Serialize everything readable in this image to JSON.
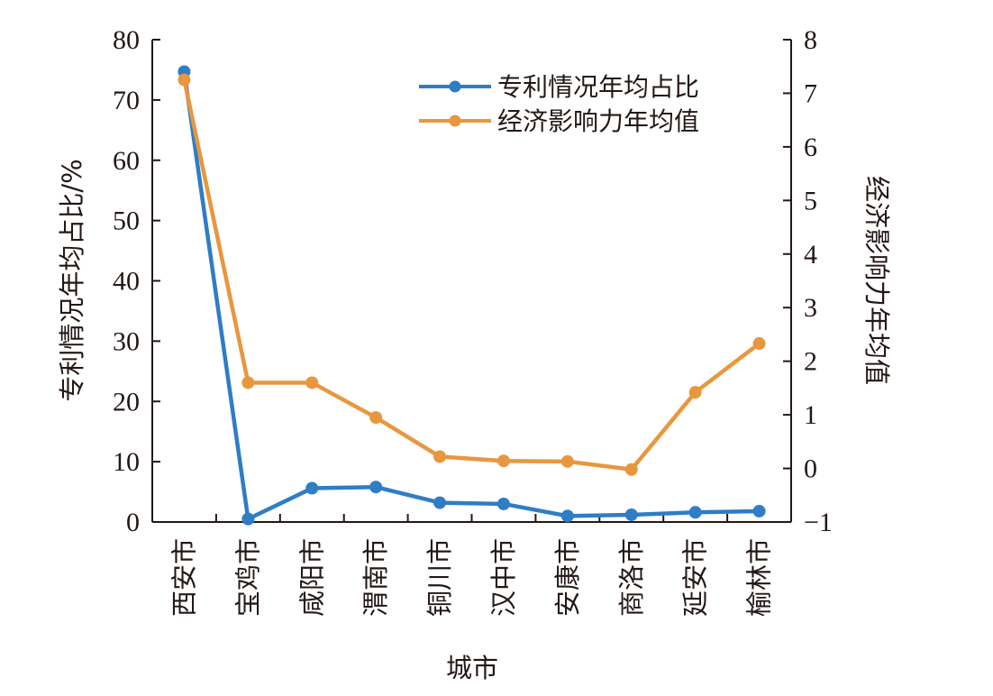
{
  "chart_data": {
    "type": "line",
    "title": "",
    "xlabel": "城市",
    "categories": [
      "西安市",
      "宝鸡市",
      "咸阳市",
      "渭南市",
      "铜川市",
      "汉中市",
      "安康市",
      "商洛市",
      "延安市",
      "榆林市"
    ],
    "y_left": {
      "label": "专利情况年均占比/%",
      "lim": [
        0,
        80
      ],
      "ticks": [
        "0",
        "10",
        "20",
        "30",
        "40",
        "50",
        "60",
        "70",
        "80"
      ]
    },
    "y_right": {
      "label": "经济影响力年均值",
      "lim": [
        -1,
        8
      ],
      "ticks": [
        "−1",
        "0",
        "1",
        "2",
        "3",
        "4",
        "5",
        "6",
        "7",
        "8"
      ]
    },
    "series": [
      {
        "name": "专利情况年均占比",
        "axis": "left",
        "color": "#2e7dc5",
        "values": [
          74.7,
          0.5,
          5.6,
          5.8,
          3.2,
          3.0,
          1.0,
          1.2,
          1.6,
          1.8
        ]
      },
      {
        "name": "经济影响力年均值",
        "axis": "right",
        "color": "#e8973f",
        "values": [
          7.25,
          1.6,
          1.6,
          0.95,
          0.22,
          0.14,
          0.13,
          -0.02,
          1.42,
          2.33
        ]
      }
    ],
    "legend_position": "top-right",
    "grid": false
  }
}
